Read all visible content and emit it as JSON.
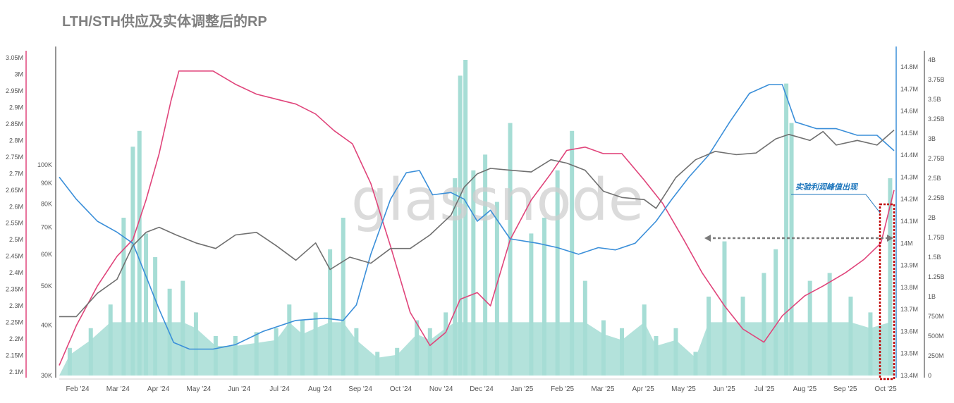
{
  "chart_data": {
    "type": "line",
    "title": "LTH/STH供应及实体调整后的RP",
    "watermark": "glassnode",
    "annotation": "实验利润峰值出现",
    "x_labels": [
      "Feb '24",
      "Mar '24",
      "Apr '24",
      "May '24",
      "Jun '24",
      "Jul '24",
      "Aug '24",
      "Sep '24",
      "Oct '24",
      "Nov '24",
      "Dec '24",
      "Jan '25",
      "Feb '25",
      "Mar '25",
      "Apr '25",
      "May '25",
      "Jun '25",
      "Jul '25",
      "Aug '25",
      "Sep '25",
      "Oct '25"
    ],
    "x_start": "2024-01-12",
    "x_end": "2025-10-08",
    "axes": {
      "left_outer": {
        "ticks": [
          "3.05M",
          "3M",
          "2.95M",
          "2.9M",
          "2.85M",
          "2.8M",
          "2.75M",
          "2.7M",
          "2.65M",
          "2.6M",
          "2.55M",
          "2.5M",
          "2.45M",
          "2.4M",
          "2.35M",
          "2.3M",
          "2.25M",
          "2.2M",
          "2.15M",
          "2.1M"
        ],
        "range": [
          2100000,
          3050000
        ],
        "color": "#e0457b"
      },
      "left_inner": {
        "ticks": [
          "100K",
          "90K",
          "80K",
          "70K",
          "60K",
          "50K",
          "40K",
          "30K"
        ],
        "values": [
          100000,
          90000,
          80000,
          70000,
          60000,
          50000,
          40000,
          30000
        ],
        "scale": "log",
        "color": "#707070"
      },
      "right_inner": {
        "ticks": [
          "14.8M",
          "14.7M",
          "14.6M",
          "14.5M",
          "14.4M",
          "14.3M",
          "14.2M",
          "14.1M",
          "14M",
          "13.9M",
          "13.8M",
          "13.7M",
          "13.6M",
          "13.5M",
          "13.4M"
        ],
        "range": [
          13400000,
          14800000
        ],
        "color": "#3b8fd9"
      },
      "right_outer": {
        "ticks": [
          "4B",
          "3.75B",
          "3.5B",
          "3.25B",
          "3B",
          "2.75B",
          "2.5B",
          "2.25B",
          "2B",
          "1.75B",
          "1.5B",
          "1.25B",
          "1B",
          "750M",
          "500M",
          "250M",
          "0"
        ],
        "range": [
          0,
          4000000000
        ],
        "color": "#333333"
      }
    },
    "series": [
      {
        "color": "#e0457b",
        "axis": "left_outer",
        "points": [
          [
            "2024-01-12",
            2120000
          ],
          [
            "2024-01-25",
            2240000
          ],
          [
            "2024-02-10",
            2360000
          ],
          [
            "2024-02-25",
            2450000
          ],
          [
            "2024-03-08",
            2500000
          ],
          [
            "2024-03-18",
            2620000
          ],
          [
            "2024-03-28",
            2760000
          ],
          [
            "2024-04-06",
            2920000
          ],
          [
            "2024-04-12",
            3010000
          ],
          [
            "2024-04-25",
            3010000
          ],
          [
            "2024-05-08",
            3010000
          ],
          [
            "2024-05-25",
            2970000
          ],
          [
            "2024-06-10",
            2940000
          ],
          [
            "2024-06-25",
            2925000
          ],
          [
            "2024-07-10",
            2910000
          ],
          [
            "2024-07-25",
            2880000
          ],
          [
            "2024-08-08",
            2830000
          ],
          [
            "2024-08-22",
            2790000
          ],
          [
            "2024-09-05",
            2670000
          ],
          [
            "2024-09-20",
            2480000
          ],
          [
            "2024-10-05",
            2280000
          ],
          [
            "2024-10-20",
            2180000
          ],
          [
            "2024-11-01",
            2220000
          ],
          [
            "2024-11-12",
            2320000
          ],
          [
            "2024-11-25",
            2340000
          ],
          [
            "2024-12-05",
            2300000
          ],
          [
            "2024-12-20",
            2500000
          ],
          [
            "2025-01-05",
            2620000
          ],
          [
            "2025-01-20",
            2700000
          ],
          [
            "2025-02-01",
            2770000
          ],
          [
            "2025-02-15",
            2780000
          ],
          [
            "2025-03-01",
            2760000
          ],
          [
            "2025-03-15",
            2760000
          ],
          [
            "2025-04-01",
            2680000
          ],
          [
            "2025-04-15",
            2610000
          ],
          [
            "2025-05-01",
            2500000
          ],
          [
            "2025-05-15",
            2400000
          ],
          [
            "2025-06-01",
            2300000
          ],
          [
            "2025-06-15",
            2230000
          ],
          [
            "2025-07-01",
            2190000
          ],
          [
            "2025-07-15",
            2270000
          ],
          [
            "2025-08-01",
            2330000
          ],
          [
            "2025-08-15",
            2360000
          ],
          [
            "2025-09-01",
            2400000
          ],
          [
            "2025-09-15",
            2440000
          ],
          [
            "2025-09-28",
            2490000
          ],
          [
            "2025-10-08",
            2650000
          ]
        ]
      },
      {
        "color": "#3b8fd9",
        "axis": "right_inner",
        "points": [
          [
            "2024-01-12",
            14.3
          ],
          [
            "2024-01-25",
            14.2
          ],
          [
            "2024-02-10",
            14.1
          ],
          [
            "2024-02-25",
            14.05
          ],
          [
            "2024-03-08",
            14.0
          ],
          [
            "2024-03-18",
            13.85
          ],
          [
            "2024-03-28",
            13.7
          ],
          [
            "2024-04-08",
            13.55
          ],
          [
            "2024-04-20",
            13.52
          ],
          [
            "2024-05-08",
            13.52
          ],
          [
            "2024-05-25",
            13.54
          ],
          [
            "2024-06-15",
            13.6
          ],
          [
            "2024-07-10",
            13.65
          ],
          [
            "2024-08-01",
            13.66
          ],
          [
            "2024-08-15",
            13.65
          ],
          [
            "2024-08-25",
            13.72
          ],
          [
            "2024-09-05",
            13.95
          ],
          [
            "2024-09-20",
            14.2
          ],
          [
            "2024-10-02",
            14.32
          ],
          [
            "2024-10-12",
            14.33
          ],
          [
            "2024-10-22",
            14.22
          ],
          [
            "2024-11-05",
            14.23
          ],
          [
            "2024-11-15",
            14.2
          ],
          [
            "2024-11-25",
            14.1
          ],
          [
            "2024-12-05",
            14.15
          ],
          [
            "2024-12-20",
            14.02
          ],
          [
            "2025-01-10",
            14.0
          ],
          [
            "2025-01-25",
            13.98
          ],
          [
            "2025-02-10",
            13.95
          ],
          [
            "2025-02-25",
            13.98
          ],
          [
            "2025-03-10",
            13.97
          ],
          [
            "2025-03-25",
            14.0
          ],
          [
            "2025-04-10",
            14.1
          ],
          [
            "2025-04-22",
            14.2
          ],
          [
            "2025-05-05",
            14.3
          ],
          [
            "2025-05-20",
            14.4
          ],
          [
            "2025-06-05",
            14.55
          ],
          [
            "2025-06-20",
            14.68
          ],
          [
            "2025-07-05",
            14.72
          ],
          [
            "2025-07-15",
            14.72
          ],
          [
            "2025-07-25",
            14.55
          ],
          [
            "2025-08-10",
            14.52
          ],
          [
            "2025-08-25",
            14.52
          ],
          [
            "2025-09-10",
            14.49
          ],
          [
            "2025-09-25",
            14.49
          ],
          [
            "2025-10-08",
            14.42
          ]
        ]
      },
      {
        "color": "#707070",
        "axis": "left_inner",
        "points": [
          [
            "2024-01-12",
            42000
          ],
          [
            "2024-01-25",
            42000
          ],
          [
            "2024-02-10",
            48000
          ],
          [
            "2024-02-25",
            52000
          ],
          [
            "2024-03-08",
            63000
          ],
          [
            "2024-03-18",
            68000
          ],
          [
            "2024-03-28",
            70000
          ],
          [
            "2024-04-10",
            67000
          ],
          [
            "2024-04-25",
            64000
          ],
          [
            "2024-05-10",
            62000
          ],
          [
            "2024-05-25",
            67000
          ],
          [
            "2024-06-10",
            68000
          ],
          [
            "2024-06-25",
            63000
          ],
          [
            "2024-07-10",
            58000
          ],
          [
            "2024-07-25",
            64000
          ],
          [
            "2024-08-05",
            55000
          ],
          [
            "2024-08-20",
            59000
          ],
          [
            "2024-09-05",
            57000
          ],
          [
            "2024-09-20",
            62000
          ],
          [
            "2024-10-05",
            62000
          ],
          [
            "2024-10-20",
            67000
          ],
          [
            "2024-11-05",
            75000
          ],
          [
            "2024-11-15",
            88000
          ],
          [
            "2024-11-25",
            95000
          ],
          [
            "2024-12-05",
            98000
          ],
          [
            "2024-12-20",
            97000
          ],
          [
            "2025-01-05",
            96000
          ],
          [
            "2025-01-20",
            103000
          ],
          [
            "2025-02-01",
            101000
          ],
          [
            "2025-02-15",
            97000
          ],
          [
            "2025-03-01",
            86000
          ],
          [
            "2025-03-15",
            83000
          ],
          [
            "2025-04-01",
            82000
          ],
          [
            "2025-04-10",
            78000
          ],
          [
            "2025-04-25",
            93000
          ],
          [
            "2025-05-10",
            103000
          ],
          [
            "2025-05-25",
            108000
          ],
          [
            "2025-06-10",
            106000
          ],
          [
            "2025-06-25",
            107000
          ],
          [
            "2025-07-10",
            116000
          ],
          [
            "2025-07-20",
            119000
          ],
          [
            "2025-08-05",
            115000
          ],
          [
            "2025-08-15",
            121000
          ],
          [
            "2025-08-25",
            112000
          ],
          [
            "2025-09-10",
            115000
          ],
          [
            "2025-09-25",
            112000
          ],
          [
            "2025-10-08",
            122000
          ]
        ]
      }
    ],
    "bars": {
      "color": "#a6ddd5",
      "axis": "right_outer",
      "points": [
        [
          "2024-01-20",
          0.35
        ],
        [
          "2024-02-05",
          0.6
        ],
        [
          "2024-02-20",
          0.9
        ],
        [
          "2024-03-01",
          2.0
        ],
        [
          "2024-03-08",
          2.9
        ],
        [
          "2024-03-13",
          3.1
        ],
        [
          "2024-03-18",
          1.8
        ],
        [
          "2024-03-25",
          1.5
        ],
        [
          "2024-04-05",
          1.1
        ],
        [
          "2024-04-15",
          1.2
        ],
        [
          "2024-04-25",
          0.8
        ],
        [
          "2024-05-10",
          0.5
        ],
        [
          "2024-05-25",
          0.5
        ],
        [
          "2024-06-10",
          0.55
        ],
        [
          "2024-06-25",
          0.6
        ],
        [
          "2024-07-05",
          0.9
        ],
        [
          "2024-07-15",
          0.7
        ],
        [
          "2024-07-25",
          0.8
        ],
        [
          "2024-08-05",
          1.6
        ],
        [
          "2024-08-15",
          2.0
        ],
        [
          "2024-08-25",
          0.6
        ],
        [
          "2024-09-10",
          0.3
        ],
        [
          "2024-09-25",
          0.35
        ],
        [
          "2024-10-10",
          0.7
        ],
        [
          "2024-10-20",
          0.6
        ],
        [
          "2024-11-01",
          0.8
        ],
        [
          "2024-11-08",
          2.5
        ],
        [
          "2024-11-12",
          3.8
        ],
        [
          "2024-11-16",
          4.0
        ],
        [
          "2024-11-22",
          2.6
        ],
        [
          "2024-12-01",
          2.8
        ],
        [
          "2024-12-10",
          2.2
        ],
        [
          "2024-12-20",
          3.2
        ],
        [
          "2025-01-05",
          1.8
        ],
        [
          "2025-01-15",
          2.0
        ],
        [
          "2025-01-25",
          2.6
        ],
        [
          "2025-02-05",
          3.1
        ],
        [
          "2025-02-15",
          1.2
        ],
        [
          "2025-03-01",
          0.7
        ],
        [
          "2025-03-15",
          0.6
        ],
        [
          "2025-04-01",
          0.9
        ],
        [
          "2025-04-10",
          0.5
        ],
        [
          "2025-04-25",
          0.6
        ],
        [
          "2025-05-10",
          0.3
        ],
        [
          "2025-05-20",
          1.0
        ],
        [
          "2025-06-01",
          1.7
        ],
        [
          "2025-06-15",
          1.0
        ],
        [
          "2025-07-01",
          1.3
        ],
        [
          "2025-07-10",
          1.6
        ],
        [
          "2025-07-18",
          3.7
        ],
        [
          "2025-07-22",
          3.2
        ],
        [
          "2025-08-05",
          1.2
        ],
        [
          "2025-08-20",
          1.3
        ],
        [
          "2025-09-05",
          1.0
        ],
        [
          "2025-09-20",
          0.8
        ],
        [
          "2025-10-05",
          2.5
        ]
      ]
    }
  }
}
